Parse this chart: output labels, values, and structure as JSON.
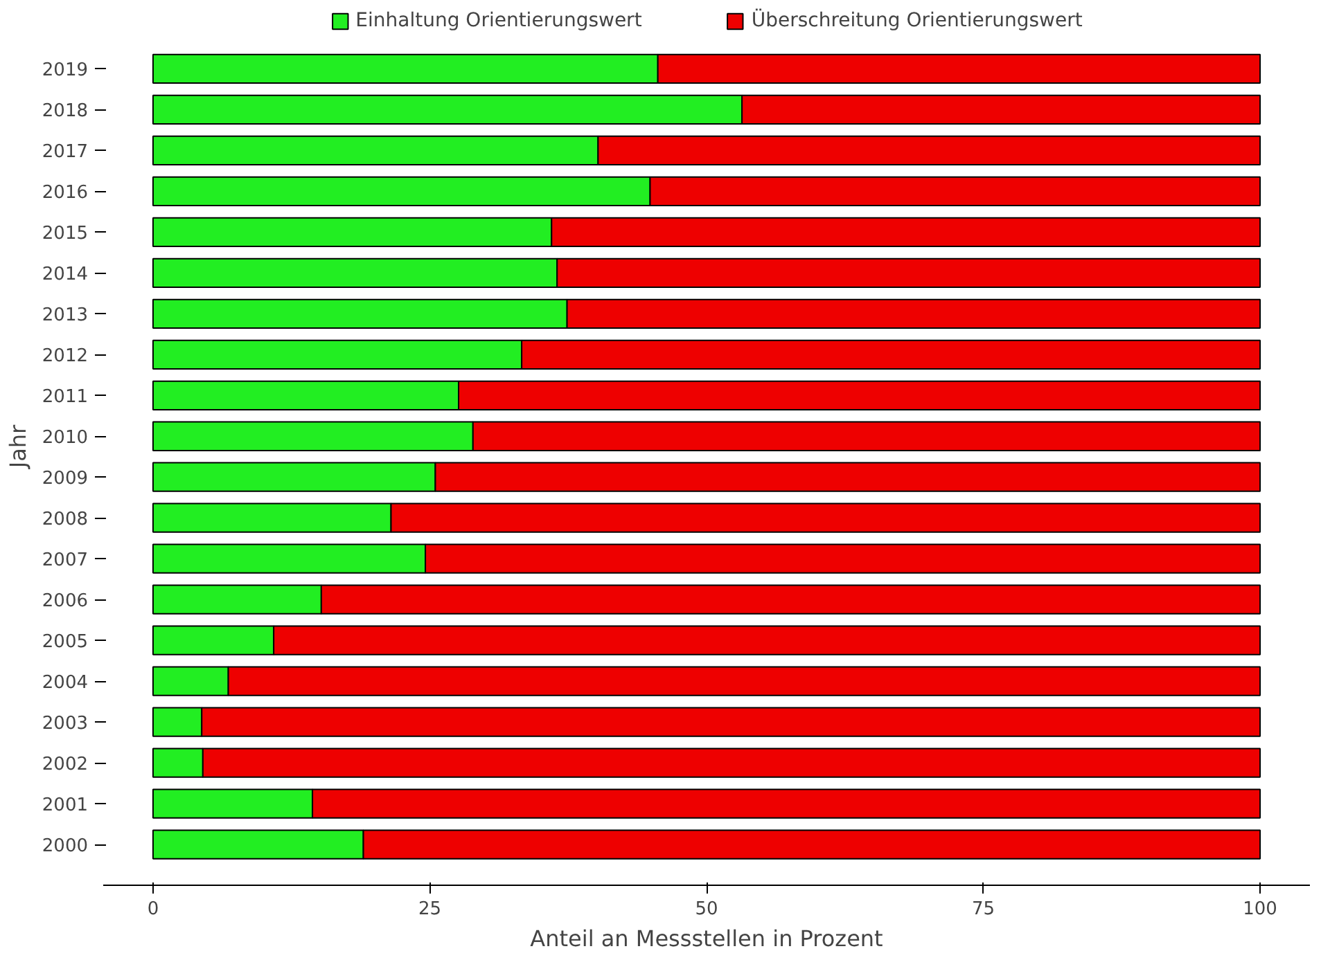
{
  "chart_data": {
    "type": "bar",
    "orientation": "horizontal",
    "stacked": true,
    "xlabel": "Anteil an Messstellen in Prozent",
    "ylabel": "Jahr",
    "categories": [
      "2019",
      "2018",
      "2017",
      "2016",
      "2015",
      "2014",
      "2013",
      "2012",
      "2011",
      "2010",
      "2009",
      "2008",
      "2007",
      "2006",
      "2005",
      "2004",
      "2003",
      "2002",
      "2001",
      "2000"
    ],
    "series": [
      {
        "name": "Einhaltung Orientierungswert",
        "color": "#22ee22",
        "values": [
          45.6,
          53.2,
          40.2,
          44.9,
          36.0,
          36.5,
          37.4,
          33.3,
          27.6,
          28.9,
          25.5,
          21.5,
          24.6,
          15.2,
          10.9,
          6.8,
          4.4,
          4.5,
          14.4,
          19.0
        ]
      },
      {
        "name": "Überschreitung Orientierungswert",
        "color": "#ee0000",
        "values": [
          54.4,
          46.8,
          59.8,
          55.1,
          64.0,
          63.5,
          62.6,
          66.7,
          72.4,
          71.1,
          74.5,
          78.5,
          75.4,
          84.8,
          89.1,
          93.2,
          95.6,
          95.5,
          85.6,
          81.0
        ]
      }
    ],
    "xlim": [
      0,
      100
    ],
    "xticks": [
      0,
      25,
      50,
      75,
      100
    ],
    "grid": false,
    "legend": "top"
  }
}
